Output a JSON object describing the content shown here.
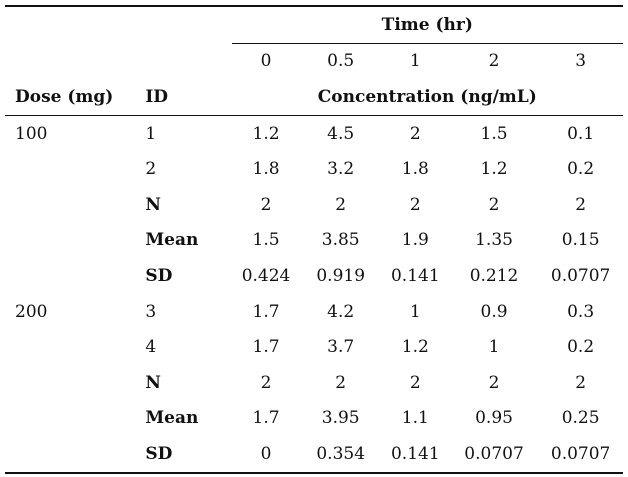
{
  "header": {
    "time_label": "Time (hr)",
    "times": [
      "0",
      "0.5",
      "1",
      "2",
      "3"
    ],
    "dose_label": "Dose (mg)",
    "id_label": "ID",
    "concentration_label": "Concentration (ng/mL)"
  },
  "groups": [
    {
      "dose": "100",
      "rows": [
        {
          "id": "1",
          "bold": false,
          "values": [
            "1.2",
            "4.5",
            "2",
            "1.5",
            "0.1"
          ]
        },
        {
          "id": "2",
          "bold": false,
          "values": [
            "1.8",
            "3.2",
            "1.8",
            "1.2",
            "0.2"
          ]
        },
        {
          "id": "N",
          "bold": true,
          "values": [
            "2",
            "2",
            "2",
            "2",
            "2"
          ]
        },
        {
          "id": "Mean",
          "bold": true,
          "values": [
            "1.5",
            "3.85",
            "1.9",
            "1.35",
            "0.15"
          ]
        },
        {
          "id": "SD",
          "bold": true,
          "values": [
            "0.424",
            "0.919",
            "0.141",
            "0.212",
            "0.0707"
          ]
        }
      ]
    },
    {
      "dose": "200",
      "rows": [
        {
          "id": "3",
          "bold": false,
          "values": [
            "1.7",
            "4.2",
            "1",
            "0.9",
            "0.3"
          ]
        },
        {
          "id": "4",
          "bold": false,
          "values": [
            "1.7",
            "3.7",
            "1.2",
            "1",
            "0.2"
          ]
        },
        {
          "id": "N",
          "bold": true,
          "values": [
            "2",
            "2",
            "2",
            "2",
            "2"
          ]
        },
        {
          "id": "Mean",
          "bold": true,
          "values": [
            "1.7",
            "3.95",
            "1.1",
            "0.95",
            "0.25"
          ]
        },
        {
          "id": "SD",
          "bold": true,
          "values": [
            "0",
            "0.354",
            "0.141",
            "0.0707",
            "0.0707"
          ]
        }
      ]
    }
  ]
}
